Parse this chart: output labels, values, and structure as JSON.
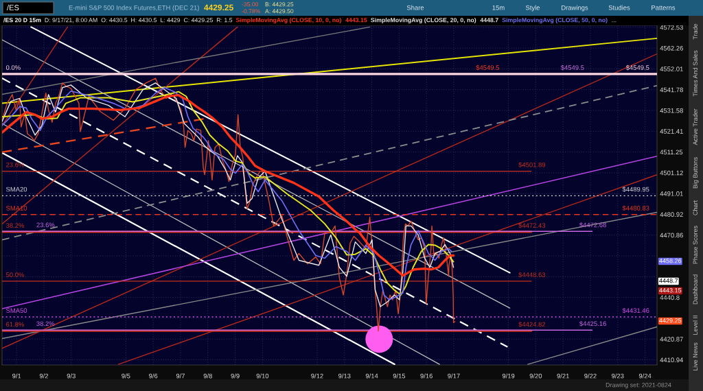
{
  "chart_data": {
    "type": "line",
    "title": "E-mini S&P 500 Index Futures,ETH (DEC 21)",
    "subtitle": "/ES 20 D 15m",
    "annotations": [
      "/ES",
      "4429.25",
      "-35.00",
      "-0.78%",
      "B: 4429.25",
      "A: 4429.50",
      "Share",
      "15m",
      "Style",
      "Drawings",
      "Studies",
      "Patterns",
      "D: 9/17/21, 8:00 AM",
      "O: 4430.5",
      "H: 4430.5",
      "L: 4429",
      "C: 4429.25",
      "R: 1.5",
      "4443.15",
      "4448.7",
      "...",
      "Trade",
      "Times And Sales",
      "Active Trader",
      "Big Buttons",
      "Chart",
      "Phase Scores",
      "Dashboard",
      "Level II",
      "Live News",
      "Drawing set: 2021-0824",
      "4458.26",
      "4448.7",
      "4443.15",
      "4429.25",
      {
        "text": "$4549.5",
        "x": "2021-09-18T05:45",
        "y": 4549.5
      },
      {
        "text": "$4549.5",
        "x": "2021-09-21T08:15",
        "y": 4549.5
      }
    ],
    "xlim": [
      "2021-08-31T11:15",
      "2021-09-24T10:30"
    ],
    "xticks": [
      {
        "value": "2021-09-01",
        "label": "9/1"
      },
      {
        "value": "2021-09-02",
        "label": "9/2"
      },
      {
        "value": "2021-09-03",
        "label": "9/3"
      },
      {
        "value": "2021-09-05",
        "label": "9/5"
      },
      {
        "value": "2021-09-06",
        "label": "9/6"
      },
      {
        "value": "2021-09-07",
        "label": "9/7"
      },
      {
        "value": "2021-09-08",
        "label": "9/8"
      },
      {
        "value": "2021-09-09",
        "label": "9/9"
      },
      {
        "value": "2021-09-10",
        "label": "9/10"
      },
      {
        "value": "2021-09-12",
        "label": "9/12"
      },
      {
        "value": "2021-09-13",
        "label": "9/13"
      },
      {
        "value": "2021-09-14",
        "label": "9/14"
      },
      {
        "value": "2021-09-15",
        "label": "9/15"
      },
      {
        "value": "2021-09-16",
        "label": "9/16"
      },
      {
        "value": "2021-09-17",
        "label": "9/17"
      },
      {
        "value": "2021-09-19",
        "label": "9/19"
      },
      {
        "value": "2021-09-20",
        "label": "9/20"
      },
      {
        "value": "2021-09-21",
        "label": "9/21"
      },
      {
        "value": "2021-09-22",
        "label": "9/22"
      },
      {
        "value": "2021-09-23",
        "label": "9/23"
      },
      {
        "value": "2021-09-24",
        "label": "9/24"
      }
    ],
    "ylim": [
      4408.5,
      4573.5
    ],
    "yticks": [
      4410.94,
      4420.87,
      {
        "value": 4430.82,
        "label": null
      },
      4440.8,
      {
        "value": 4450.79,
        "label": null
      },
      {
        "value": 4460.81,
        "label": null
      },
      4470.86,
      4480.92,
      4491.01,
      4501.12,
      4511.25,
      4521.41,
      4531.58,
      4541.78,
      4552.01,
      4562.26,
      4572.53
    ],
    "log": "y",
    "grid": true,
    "legend": "top left",
    "series": [
      {
        "color": "#d8462a",
        "x": [
          "2021-08-31T11:15",
          "2021-08-31T15:45",
          "2021-08-31T20:15",
          "2021-08-31T23:30",
          "2021-09-01T02:45",
          "2021-09-01T04:00",
          "2021-09-01T07:15",
          "2021-09-01T09:30",
          "2021-09-01T13:15",
          "2021-09-01T15:30",
          "2021-09-01T19:00",
          "2021-09-01T22:15",
          "2021-09-02T01:45",
          "2021-09-02T04:00",
          "2021-09-02T07:15",
          "2021-09-02T10:15",
          "2021-09-02T13:00",
          "2021-09-02T16:15",
          "2021-09-02T19:45",
          "2021-09-02T23:45",
          "2021-09-03T06:45",
          "2021-09-03T08:00",
          "2021-09-03T15:30",
          "2021-09-04T01:30",
          "2021-09-04T13:00",
          "2021-09-04T23:15",
          "2021-09-05T08:45",
          "2021-09-05T17:45",
          "2021-09-06T02:00",
          "2021-09-06T06:15",
          "2021-09-06T11:15",
          "2021-09-06T17:15",
          "2021-09-06T21:30",
          "2021-09-07T00:30",
          "2021-09-07T02:45",
          "2021-09-07T04:00",
          "2021-09-07T06:30",
          "2021-09-07T09:30",
          "2021-09-07T11:45",
          "2021-09-07T14:00",
          "2021-09-07T17:45",
          "2021-09-07T20:00",
          "2021-09-07T21:15",
          "2021-09-08T00:30",
          "2021-09-08T03:45",
          "2021-09-08T06:15",
          "2021-09-08T09:30",
          "2021-09-08T13:00",
          "2021-09-08T16:15",
          "2021-09-08T18:30",
          "2021-09-08T21:30",
          "2021-09-09T00:15",
          "2021-09-09T02:30",
          "2021-09-09T04:30",
          "2021-09-09T06:45",
          "2021-09-09T08:45",
          "2021-09-09T10:30",
          "2021-09-09T12:45",
          "2021-09-09T15:15",
          "2021-09-09T18:15",
          "2021-09-09T21:45",
          "2021-09-09T23:45",
          "2021-09-10T05:15",
          "2021-09-10T09:45",
          "2021-09-10T17:00",
          "2021-09-10T21:30",
          "2021-09-11T03:30",
          "2021-09-11T08:00",
          "2021-09-11T15:30",
          "2021-09-11T22:45",
          "2021-09-12T03:00",
          "2021-09-12T06:45",
          "2021-09-12T12:00",
          "2021-09-12T15:45",
          "2021-09-12T19:30",
          "2021-09-12T23:00",
          "2021-09-13T02:00",
          "2021-09-13T05:00",
          "2021-09-13T08:15",
          "2021-09-13T13:15",
          "2021-09-13T18:45",
          "2021-09-13T22:15",
          "2021-09-14T00:45",
          "2021-09-14T02:30",
          "2021-09-14T04:00",
          "2021-09-14T05:45",
          "2021-09-14T07:30",
          "2021-09-14T09:45",
          "2021-09-14T12:00",
          "2021-09-14T13:45",
          "2021-09-14T16:00",
          "2021-09-14T18:15",
          "2021-09-14T21:00",
          "2021-09-14T23:15",
          "2021-09-15T01:00",
          "2021-09-15T02:15",
          "2021-09-15T03:45",
          "2021-09-15T05:30",
          "2021-09-15T07:45",
          "2021-09-15T10:30",
          "2021-09-15T13:30",
          "2021-09-15T16:45",
          "2021-09-15T19:30",
          "2021-09-15T22:30",
          "2021-09-15T23:45",
          "2021-09-16T01:45",
          "2021-09-16T04:00",
          "2021-09-16T04:45",
          "2021-09-16T06:30",
          "2021-09-16T08:45",
          "2021-09-16T11:00",
          "2021-09-16T13:15",
          "2021-09-16T15:00",
          "2021-09-16T17:15",
          "2021-09-16T19:30",
          "2021-09-16T19:45",
          "2021-09-16T21:30",
          "2021-09-16T22:30",
          "2021-09-16T23:30",
          "2021-09-16T23:45",
          "2021-09-17T01:00"
        ],
        "values": [
          4526.8,
          4535.1,
          4539.4,
          4531.8,
          4536.8,
          4523.5,
          4530.1,
          4520.2,
          4518.5,
          4516.8,
          4520.2,
          4530.1,
          4540.1,
          4531.8,
          4525.8,
          4535.1,
          4538.5,
          4545.1,
          4543.4,
          4542.4,
          4535.1,
          4521.2,
          4538.5,
          4531.1,
          4526.8,
          4532.5,
          4541.8,
          4545.1,
          4547.4,
          4541.8,
          4537.5,
          4539.1,
          4535.1,
          4531.8,
          4523.5,
          4513.5,
          4521.8,
          4520.2,
          4516.8,
          4522.5,
          4521.8,
          4503.5,
          4500.2,
          4516.8,
          4497.6,
          4513.5,
          4515.2,
          4506.9,
          4501.9,
          4496.9,
          4505.2,
          4510.2,
          4529.5,
          4513.5,
          4508.5,
          4493.6,
          4483.6,
          4486.9,
          4495.2,
          4498.6,
          4501.9,
          4501.9,
          4488.6,
          4475.3,
          4480.3,
          4470.3,
          4458.7,
          4462.0,
          4457.0,
          4460.3,
          4457.0,
          4472.0,
          4472.0,
          4475.3,
          4450.3,
          4442.0,
          4452.0,
          4467.0,
          4470.3,
          4467.6,
          4464.3,
          4479.6,
          4462.0,
          4446.4,
          4437.7,
          4424.7,
          4436.4,
          4444.4,
          4439.7,
          4436.4,
          4442.0,
          4439.7,
          4444.4,
          4433.0,
          4442.0,
          4453.0,
          4469.6,
          4476.3,
          4475.3,
          4477.6,
          4473.0,
          4468.6,
          4469.6,
          4464.3,
          4437.7,
          4451.0,
          4464.3,
          4475.3,
          4461.0,
          4462.0,
          4459.7,
          4466.3,
          4469.6,
          4462.0,
          4451.0,
          4456.3,
          4461.0,
          4455.3,
          4442.0,
          4428.7,
          4429.25
        ]
      },
      {
        "name": "SimpleMovingAvg (CLOSE, 10, 0, no)",
        "color": "#ff3318",
        "x": [
          "2021-08-31T11:15",
          "2021-08-31T19:00",
          "2021-09-01T08:30",
          "2021-09-01T16:15",
          "2021-09-01T22:15",
          "2021-09-02T07:15",
          "2021-09-02T14:45",
          "2021-09-02T22:00",
          "2021-09-03T18:15",
          "2021-09-04T19:00",
          "2021-09-05T11:30",
          "2021-09-06T02:00",
          "2021-09-06T12:15",
          "2021-09-06T22:15",
          "2021-09-07T07:45",
          "2021-09-07T14:00",
          "2021-09-07T21:15",
          "2021-09-08T05:00",
          "2021-09-08T12:45",
          "2021-09-08T19:45",
          "2021-09-09T03:15",
          "2021-09-09T10:30",
          "2021-09-09T17:30",
          "2021-09-10T02:15",
          "2021-09-11T03:30",
          "2021-09-12T01:30",
          "2021-09-12T14:15",
          "2021-09-13T02:00",
          "2021-09-13T09:30",
          "2021-09-13T13:15",
          "2021-09-13T22:15",
          "2021-09-14T06:15",
          "2021-09-14T13:45",
          "2021-09-14T21:00",
          "2021-09-15T03:15",
          "2021-09-15T07:45",
          "2021-09-15T13:30",
          "2021-09-15T22:30",
          "2021-09-16T04:15",
          "2021-09-16T10:30",
          "2021-09-16T16:15",
          "2021-09-16T20:45",
          "2021-09-16T23:45"
        ],
        "values": [
          4520.8,
          4524.5,
          4530.8,
          4529.5,
          4527.5,
          4528.5,
          4530.8,
          4532.5,
          4532.5,
          4531.8,
          4532.8,
          4536.1,
          4538.5,
          4539.1,
          4536.1,
          4533.5,
          4530.8,
          4527.5,
          4523.5,
          4518.5,
          4514.2,
          4509.5,
          4504.5,
          4501.9,
          4496.2,
          4489.6,
          4482.9,
          4477.6,
          4473.6,
          4472.0,
          4465.3,
          4461.0,
          4457.7,
          4454.3,
          4451.3,
          4452.7,
          4454.3,
          4454.7,
          4454.3,
          4455.3,
          4458.7,
          4461.0,
          4461.0
        ]
      },
      {
        "name": "SimpleMovingAvg (CLOSE, 20, 0, no)",
        "color": "#e8e8e8",
        "x": [
          "2021-08-31T11:15",
          "2021-08-31T19:00",
          "2021-09-01T02:45",
          "2021-09-01T08:30",
          "2021-09-01T16:15",
          "2021-09-01T22:15",
          "2021-09-02T04:00",
          "2021-09-02T10:15",
          "2021-09-02T16:15",
          "2021-09-02T23:45",
          "2021-09-03T14:00",
          "2021-09-04T08:45",
          "2021-09-04T23:15",
          "2021-09-05T15:00",
          "2021-09-06T02:00",
          "2021-09-06T10:00",
          "2021-09-06T20:15",
          "2021-09-07T03:15",
          "2021-09-07T09:30",
          "2021-09-07T15:30",
          "2021-09-07T21:15",
          "2021-09-08T01:45",
          "2021-09-08T08:15",
          "2021-09-08T15:15",
          "2021-09-08T19:45",
          "2021-09-09T02:00",
          "2021-09-09T06:15",
          "2021-09-09T10:30",
          "2021-09-09T14:45",
          "2021-09-09T20:15",
          "2021-09-10T02:15",
          "2021-09-10T17:00",
          "2021-09-11T08:00",
          "2021-09-12T01:30",
          "2021-09-12T12:00",
          "2021-09-12T19:30",
          "2021-09-13T02:00",
          "2021-09-13T09:30",
          "2021-09-13T18:45",
          "2021-09-14T00:15",
          "2021-09-14T03:00",
          "2021-09-14T07:30",
          "2021-09-14T13:45",
          "2021-09-14T19:45",
          "2021-09-15T00:15",
          "2021-09-15T03:15",
          "2021-09-15T06:00",
          "2021-09-15T10:30",
          "2021-09-15T16:45",
          "2021-09-15T22:30",
          "2021-09-16T03:00",
          "2021-09-16T07:30",
          "2021-09-16T12:00",
          "2021-09-16T16:15",
          "2021-09-16T20:45",
          "2021-09-16T23:45"
        ],
        "values": [
          4526.1,
          4536.1,
          4537.5,
          4528.5,
          4519.5,
          4524.2,
          4539.4,
          4530.8,
          4542.8,
          4544.1,
          4537.5,
          4534.1,
          4528.5,
          4541.8,
          4545.1,
          4541.8,
          4537.5,
          4525.2,
          4521.8,
          4518.5,
          4514.2,
          4511.9,
          4509.5,
          4502.9,
          4497.6,
          4509.5,
          4506.2,
          4486.3,
          4488.6,
          4498.6,
          4501.9,
          4478.6,
          4458.7,
          4456.3,
          4471.0,
          4455.3,
          4451.0,
          4467.6,
          4462.0,
          4468.6,
          4444.4,
          4436.4,
          4438.7,
          4442.0,
          4439.7,
          4453.0,
          4475.3,
          4475.3,
          4471.0,
          4459.7,
          4455.3,
          4462.0,
          4463.0,
          4466.3,
          4462.0,
          4455.3
        ]
      },
      {
        "name": "SimpleMovingAvg (CLOSE, 50, 0, no)",
        "color": "#6e6ef5",
        "x": [
          "2021-08-31T11:15",
          "2021-08-31T19:00",
          "2021-09-01T02:45",
          "2021-09-01T08:30",
          "2021-09-01T13:15",
          "2021-09-01T20:45",
          "2021-09-02T02:45",
          "2021-09-02T10:15",
          "2021-09-02T17:30",
          "2021-09-02T23:45",
          "2021-09-03T18:15",
          "2021-09-04T13:00",
          "2021-09-05T02:15",
          "2021-09-05T15:00",
          "2021-09-06T02:00",
          "2021-09-06T10:00",
          "2021-09-06T18:30",
          "2021-09-07T01:45",
          "2021-09-07T06:30",
          "2021-09-07T11:00",
          "2021-09-07T15:30",
          "2021-09-07T20:00",
          "2021-09-07T23:15",
          "2021-09-08T03:45",
          "2021-09-08T08:15",
          "2021-09-08T14:00",
          "2021-09-08T19:45",
          "2021-09-09T00:15",
          "2021-09-09T06:15",
          "2021-09-09T10:30",
          "2021-09-09T16:00",
          "2021-09-09T20:15",
          "2021-09-10T02:15",
          "2021-09-10T17:00",
          "2021-09-11T08:00",
          "2021-09-11T22:45",
          "2021-09-12T06:45",
          "2021-09-12T16:30",
          "2021-09-13T02:00",
          "2021-09-13T09:30",
          "2021-09-13T18:45",
          "2021-09-14T01:45",
          "2021-09-14T06:15",
          "2021-09-14T10:45",
          "2021-09-14T15:15",
          "2021-09-14T21:00",
          "2021-09-15T03:15",
          "2021-09-15T06:00",
          "2021-09-15T10:30",
          "2021-09-15T16:45",
          "2021-09-15T21:15",
          "2021-09-16T01:45",
          "2021-09-16T07:30",
          "2021-09-16T13:15",
          "2021-09-16T19:30",
          "2021-09-16T22:00"
        ],
        "values": [
          4524.2,
          4528.5,
          4533.5,
          4532.8,
          4527.5,
          4521.8,
          4528.5,
          4532.8,
          4537.5,
          4541.1,
          4538.5,
          4535.1,
          4531.8,
          4534.1,
          4540.1,
          4542.8,
          4540.8,
          4537.5,
          4528.5,
          4522.8,
          4520.8,
          4518.5,
          4516.2,
          4511.9,
          4509.5,
          4507.5,
          4502.9,
          4500.9,
          4505.2,
          4501.9,
          4495.2,
          4491.9,
          4497.6,
          4487.6,
          4473.0,
          4461.0,
          4459.7,
          4465.3,
          4463.0,
          4458.7,
          4466.0,
          4462.0,
          4453.0,
          4442.0,
          4439.7,
          4441.0,
          4443.0,
          4455.3,
          4466.3,
          4473.0,
          4467.6,
          4462.0,
          4458.7,
          4463.0,
          4464.3,
          4463.0
        ]
      },
      {
        "color": "#e6e620",
        "x": [
          "2021-08-31T11:15",
          "2021-09-01T01:00",
          "2021-09-01T16:15",
          "2021-09-02T01:30",
          "2021-09-02T11:45",
          "2021-09-02T19:15",
          "2021-09-03T08:00",
          "2021-09-04T08:45",
          "2021-09-05T06:00",
          "2021-09-05T20:30",
          "2021-09-06T10:00",
          "2021-09-06T22:15",
          "2021-09-07T05:00",
          "2021-09-07T11:00",
          "2021-09-07T18:45",
          "2021-09-08T01:45",
          "2021-09-08T09:30",
          "2021-09-08T17:15",
          "2021-09-09T00:15",
          "2021-09-09T06:15",
          "2021-09-09T11:45",
          "2021-09-09T17:30",
          "2021-09-10T02:15",
          "2021-09-10T21:30",
          "2021-09-11T18:15",
          "2021-09-12T06:45",
          "2021-09-12T16:30",
          "2021-09-13T02:00",
          "2021-09-13T09:30",
          "2021-09-13T18:45",
          "2021-09-14T01:45",
          "2021-09-14T07:30",
          "2021-09-14T13:45",
          "2021-09-14T19:45",
          "2021-09-15T01:30",
          "2021-09-15T06:00",
          "2021-09-15T12:15",
          "2021-09-15T19:30",
          "2021-09-16T01:45",
          "2021-09-16T07:30",
          "2021-09-16T13:15",
          "2021-09-16T19:30",
          "2021-09-16T23:45"
        ],
        "values": [
          4528.5,
          4529.1,
          4529.5,
          4527.5,
          4527.8,
          4535.1,
          4537.8,
          4537.8,
          4535.8,
          4537.5,
          4539.1,
          4540.8,
          4538.5,
          4531.8,
          4526.1,
          4519.5,
          4515.2,
          4511.9,
          4506.9,
          4505.9,
          4500.9,
          4498.6,
          4499.2,
          4490.9,
          4482.9,
          4476.3,
          4469.6,
          4461.3,
          4461.6,
          4464.3,
          4461.0,
          4454.3,
          4447.7,
          4444.4,
          4442.0,
          4446.4,
          4455.3,
          4463.0,
          4466.3,
          4466.0,
          4464.3,
          4461.0,
          4458.0
        ]
      },
      {
        "color": "#e6e600",
        "x": [
          "2021-08-31T11:15",
          "2021-09-24T10:30"
        ],
        "values": [
          4535.1,
          4567.1
        ]
      },
      {
        "color": "#ffffff",
        "x": [
          "2021-09-01T12:45",
          "2021-09-19T01:15"
        ],
        "values": [
          4572.7,
          4452.7
        ]
      },
      {
        "color": "#bdbdbd",
        "x": [
          "2021-08-31T11:15",
          "2021-09-19T01:15"
        ],
        "values": [
          4566.4,
          4435.7
        ]
      },
      {
        "color": "#ffffff",
        "x": [
          "2021-08-31T11:15",
          "2021-09-18T23:15"
        ],
        "values": [
          4547.4,
          4417.1
        ],
        "line_style": "dashed"
      },
      {
        "color": "#bdbdbd",
        "x": [
          "2021-08-31T11:15",
          "2021-09-16T11:30"
        ],
        "values": [
          4525.2,
          4408.8
        ]
      },
      {
        "color": "#ffffff",
        "x": [
          "2021-08-31T11:15",
          "2021-09-14T20:00"
        ],
        "values": [
          4510.9,
          4408.8
        ]
      },
      {
        "color": "#b8281a",
        "x": [
          "2021-08-31T11:15",
          "2021-09-09T02:00"
        ],
        "values": [
          4476.3,
          4572.7
        ]
      },
      {
        "color": "#b8281a",
        "x": [
          "2021-08-31T11:15",
          "2021-09-02T20:45"
        ],
        "values": [
          4524.2,
          4572.7
        ]
      },
      {
        "color": "#b8281a",
        "x": [
          "2021-08-31T11:15",
          "2021-09-24T10:30"
        ],
        "values": [
          4416.4,
          4559.4
        ]
      },
      {
        "color": "#b8281a",
        "x": [
          "2021-09-04T17:30",
          "2021-09-24T10:30"
        ],
        "values": [
          4408.8,
          4500.2
        ]
      },
      {
        "color": "#e8461e",
        "x": [
          "2021-08-31T11:15",
          "2021-09-07T21:15"
        ],
        "values": [
          4511.2,
          4527.5
        ],
        "line_style": "dashed"
      },
      {
        "color": "#8c8c8c",
        "x": [
          "2021-08-31T11:15",
          "2021-09-24T10:30"
        ],
        "values": [
          4468.6,
          4543.8
        ],
        "line_style": "dashed"
      },
      {
        "color": "#7a7a7a",
        "x": [
          "2021-08-31T11:15",
          "2021-09-13T22:15"
        ],
        "values": [
          4539.5,
          4572.7
        ]
      },
      {
        "color": "#8a8a8a",
        "x": [
          "2021-08-31T11:15",
          "2021-09-24T10:30"
        ],
        "values": [
          4421.1,
          4481.9
        ]
      },
      {
        "color": "#8a8a8a",
        "x": [
          "2021-09-19T17:00",
          "2021-09-24T10:30"
        ],
        "values": [
          4408.8,
          4426.7
        ]
      },
      {
        "color": "#b444e0",
        "x": [
          "2021-08-31T11:15",
          "2021-09-24T10:30"
        ],
        "values": [
          4435.4,
          4509.2
        ]
      },
      {
        "name": "0.0%",
        "color": "#ffd6e2",
        "x": [
          "2021-08-31T11:15",
          "2021-09-24T10:30"
        ],
        "values": [
          4549.5,
          4549.5
        ],
        "value_labels": [
          null,
          "$4549.5"
        ]
      },
      {
        "name": "23.6%",
        "color": "#c8301c",
        "x": [
          "2021-08-31T11:15",
          "2021-09-19T20:00"
        ],
        "values": [
          4501.89,
          4501.89
        ],
        "value_labels": [
          null,
          "$4501.89"
        ]
      },
      {
        "name": "SMA20",
        "color": "#d8d8d8",
        "x": [
          "2021-08-31T11:15",
          "2021-09-24T10:30"
        ],
        "values": [
          4489.95,
          4489.95
        ],
        "value_labels": [
          null,
          "$4489.95"
        ],
        "line_style": "dotted"
      },
      {
        "name": "SMA10",
        "color": "#e8361e",
        "x": [
          "2021-08-31T11:15",
          "2021-09-24T10:30"
        ],
        "values": [
          4480.83,
          4480.83
        ],
        "value_labels": [
          null,
          "$4480.83"
        ],
        "line_style": "dashed"
      },
      {
        "name": "38.2%",
        "color": "#c8301c",
        "x": [
          "2021-08-31T11:15",
          "2021-09-19T20:00"
        ],
        "values": [
          4472.43,
          4472.43
        ],
        "value_labels": [
          null,
          "$4472.43"
        ]
      },
      {
        "name": "23.6%",
        "color": "#c868e0",
        "x": [
          "2021-08-31T11:15",
          "2021-09-22T01:30"
        ],
        "values": [
          4472.68,
          4472.68
        ],
        "value_labels": [
          null,
          "$4472.68"
        ]
      },
      {
        "name": "50.0%",
        "color": "#c8301c",
        "x": [
          "2021-08-31T11:15",
          "2021-09-19T20:00"
        ],
        "values": [
          4448.63,
          4448.63
        ],
        "value_labels": [
          null,
          "$4448.63"
        ]
      },
      {
        "name": "SMA50",
        "color": "#d050e0",
        "x": [
          "2021-08-31T11:15",
          "2021-09-24T10:30"
        ],
        "values": [
          4431.46,
          4431.46
        ],
        "value_labels": [
          null,
          "$4431.46"
        ],
        "line_style": "dotted"
      },
      {
        "name": "61.8%",
        "color": "#c8301c",
        "x": [
          "2021-08-31T11:15",
          "2021-09-19T20:00"
        ],
        "values": [
          4424.82,
          4424.82
        ],
        "value_labels": [
          null,
          "$4424.82"
        ]
      },
      {
        "name": "38.2%",
        "color": "#c868e0",
        "x": [
          "2021-08-31T11:15",
          "2021-09-22T01:30"
        ],
        "values": [
          4425.16,
          4425.16
        ],
        "value_labels": [
          null,
          "$4425.16"
        ]
      },
      {
        "type": "bubble",
        "color": "#ff5cf0",
        "x": [
          "2021-09-14T06:30"
        ],
        "values": [
          4420.8
        ],
        "sizes": [
          1
        ]
      }
    ]
  }
}
